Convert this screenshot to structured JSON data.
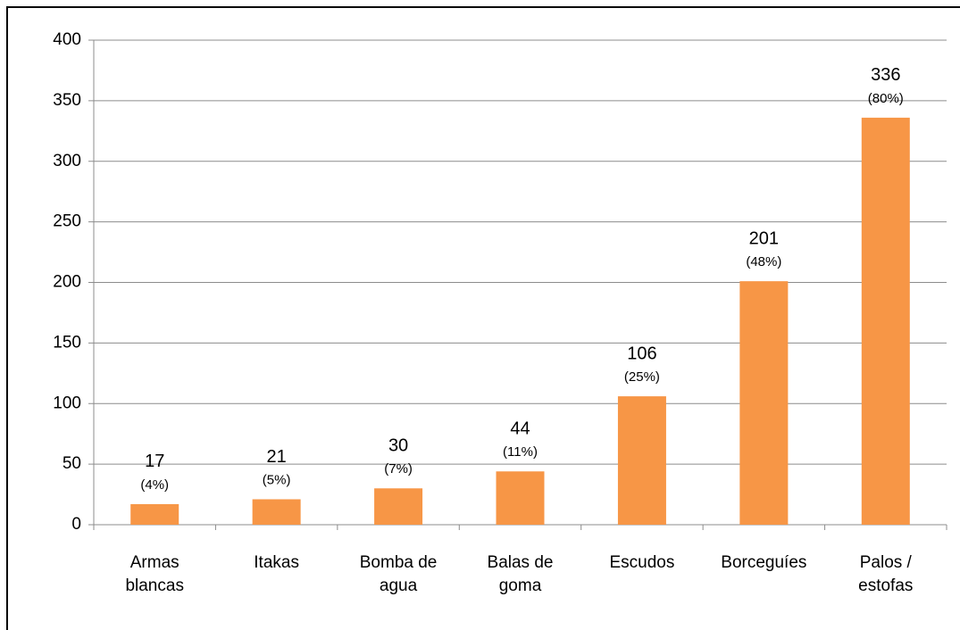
{
  "chart_data": {
    "type": "bar",
    "categories": [
      "Armas blancas",
      "Itakas",
      "Bomba de agua",
      "Balas de goma",
      "Escudos",
      "Borceguíes",
      "Palos / estofas"
    ],
    "values": [
      17,
      21,
      30,
      44,
      106,
      201,
      336
    ],
    "percent_labels": [
      "(4%)",
      "(5%)",
      "(7%)",
      "(11%)",
      "(25%)",
      "(48%)",
      "(80%)"
    ],
    "color": "#f79646",
    "ylim": [
      0,
      400
    ],
    "yticks": [
      0,
      50,
      100,
      150,
      200,
      250,
      300,
      350,
      400
    ],
    "grid": true
  }
}
